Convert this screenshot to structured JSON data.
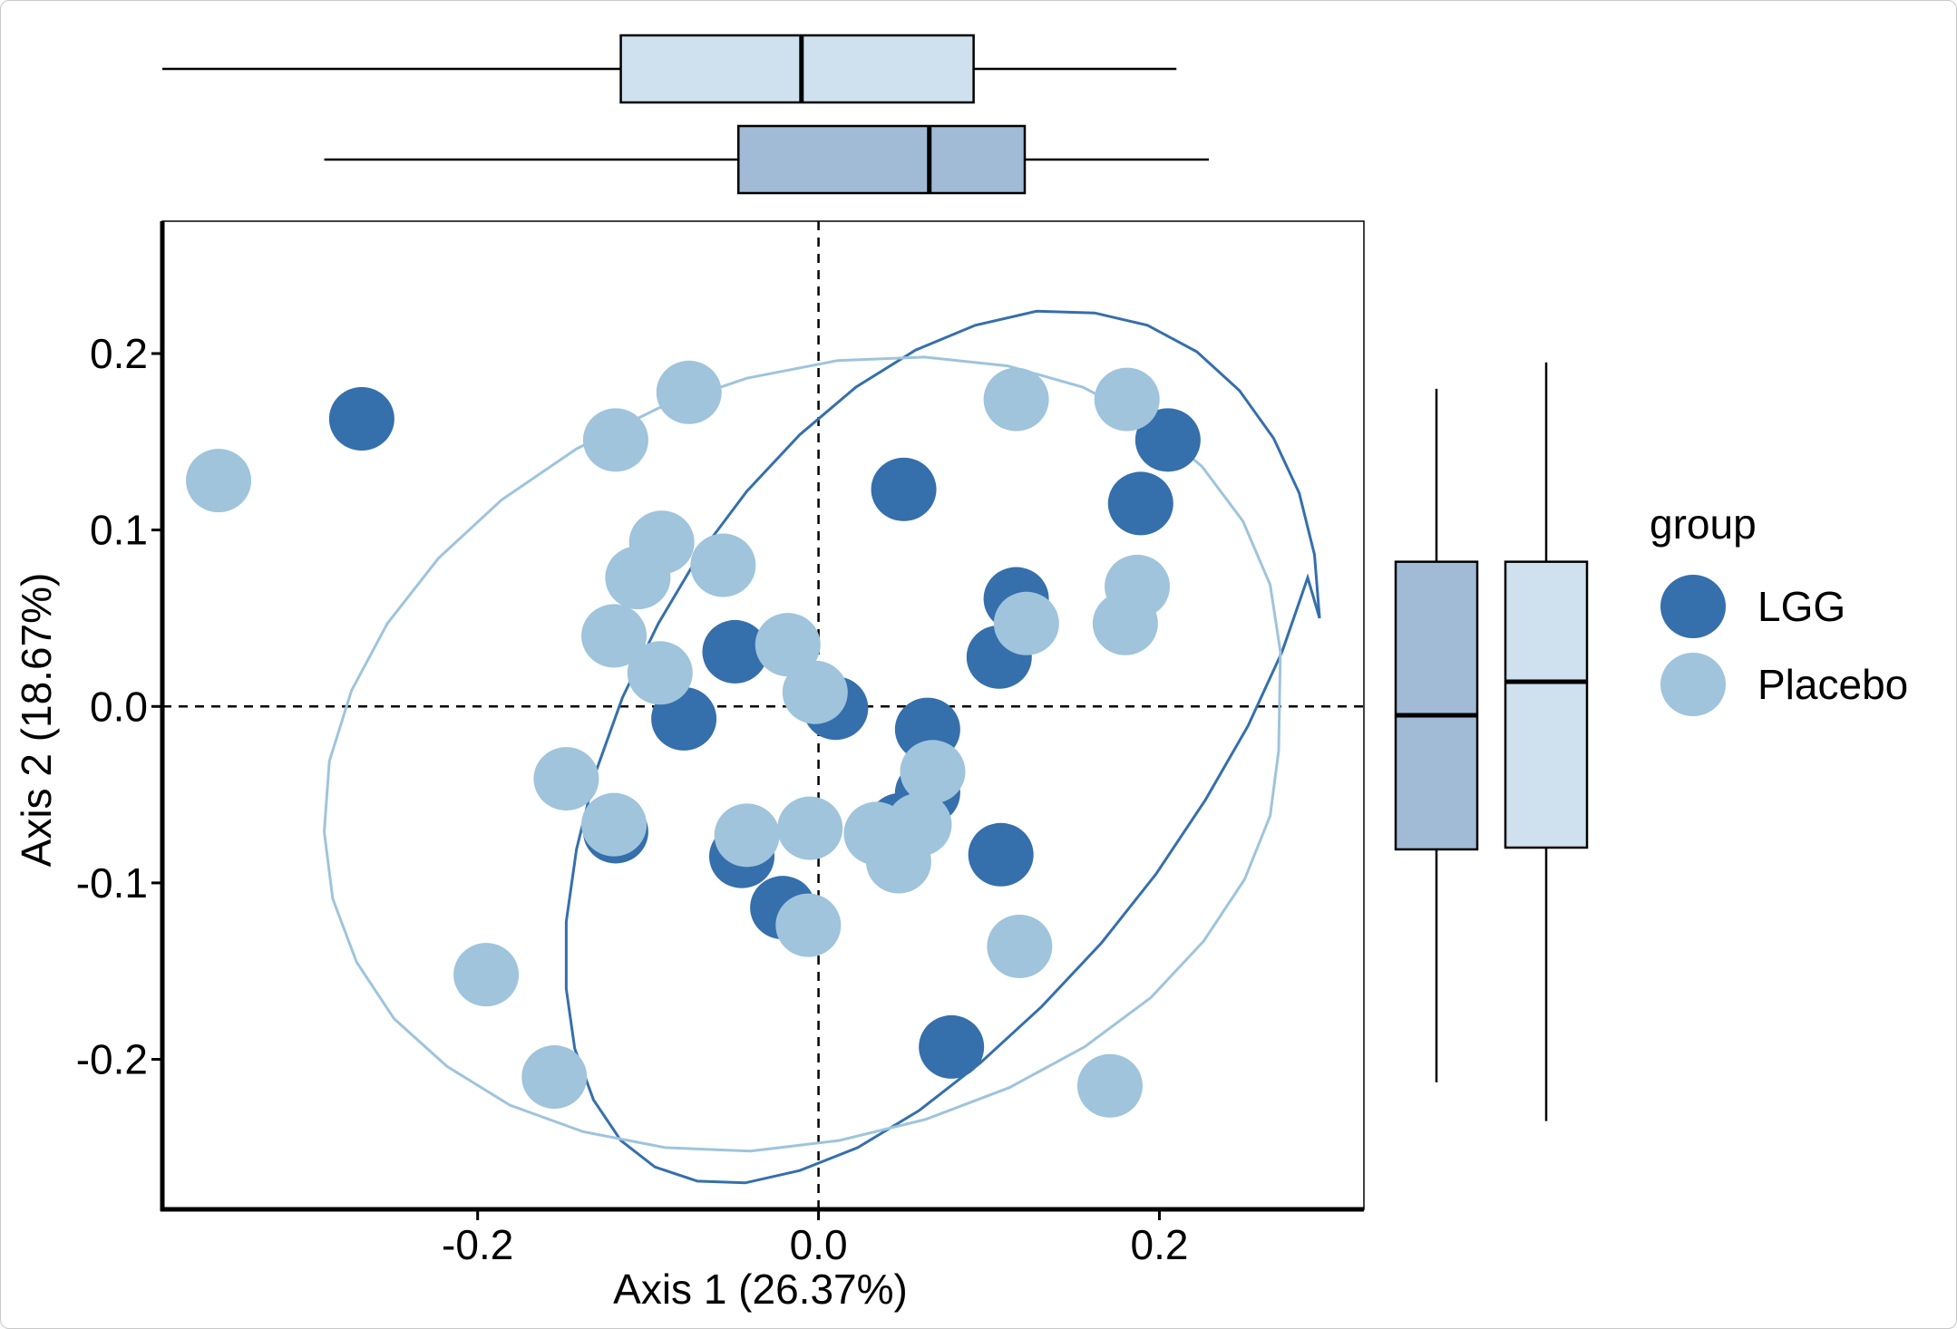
{
  "colors": {
    "LGG": "#356fac",
    "Placebo": "#9fc4dc",
    "box_LGG_fill": "#a1bbd6",
    "box_Placebo_fill": "#cfe1ee",
    "ellipse_LGG": "#356fac",
    "ellipse_Placebo": "#9fc4dc"
  },
  "chart_data": {
    "type": "scatter",
    "title": "",
    "xlabel": "Axis 1 (26.37%)",
    "ylabel": "Axis 2 (18.67%)",
    "xlim": [
      -0.385,
      0.32
    ],
    "ylim": [
      -0.285,
      0.275
    ],
    "x_ticks": [
      -0.2,
      0.0,
      0.2
    ],
    "x_tick_labels": [
      "-0.2",
      "0.0",
      "0.2"
    ],
    "y_ticks": [
      -0.2,
      -0.1,
      0.0,
      0.1,
      0.2
    ],
    "y_tick_labels": [
      "-0.2",
      "-0.1",
      "0.0",
      "0.1",
      "0.2"
    ],
    "reference_lines": {
      "x": 0.0,
      "y": 0.0
    },
    "legend": {
      "title": "group",
      "position": "right",
      "entries": [
        "LGG",
        "Placebo"
      ]
    },
    "series": [
      {
        "name": "LGG",
        "points": [
          [
            -0.268,
            0.163
          ],
          [
            0.05,
            0.123
          ],
          [
            0.205,
            0.151
          ],
          [
            0.189,
            0.115
          ],
          [
            0.116,
            0.061
          ],
          [
            0.106,
            0.028
          ],
          [
            -0.049,
            0.031
          ],
          [
            -0.079,
            -0.007
          ],
          [
            0.01,
            -0.001
          ],
          [
            0.064,
            -0.013
          ],
          [
            0.064,
            -0.049
          ],
          [
            -0.119,
            -0.071
          ],
          [
            -0.045,
            -0.085
          ],
          [
            -0.021,
            -0.114
          ],
          [
            0.107,
            -0.084
          ],
          [
            0.078,
            -0.193
          ],
          [
            0.048,
            -0.067
          ]
        ]
      },
      {
        "name": "Placebo",
        "points": [
          [
            -0.352,
            0.128
          ],
          [
            -0.076,
            0.178
          ],
          [
            -0.119,
            0.151
          ],
          [
            0.116,
            0.174
          ],
          [
            0.181,
            0.174
          ],
          [
            -0.092,
            0.093
          ],
          [
            -0.106,
            0.073
          ],
          [
            -0.056,
            0.08
          ],
          [
            0.187,
            0.068
          ],
          [
            0.18,
            0.047
          ],
          [
            0.122,
            0.047
          ],
          [
            -0.12,
            0.04
          ],
          [
            -0.093,
            0.019
          ],
          [
            -0.018,
            0.035
          ],
          [
            -0.002,
            0.008
          ],
          [
            -0.148,
            -0.041
          ],
          [
            -0.12,
            -0.067
          ],
          [
            -0.042,
            -0.073
          ],
          [
            -0.005,
            -0.069
          ],
          [
            0.034,
            -0.072
          ],
          [
            0.047,
            -0.088
          ],
          [
            0.059,
            -0.067
          ],
          [
            0.067,
            -0.037
          ],
          [
            -0.006,
            -0.124
          ],
          [
            0.118,
            -0.136
          ],
          [
            -0.195,
            -0.152
          ],
          [
            -0.155,
            -0.21
          ],
          [
            0.171,
            -0.215
          ]
        ]
      }
    ],
    "ellipses": [
      {
        "name": "LGG",
        "center": [
          0.04,
          -0.01
        ],
        "semi_x": 0.25,
        "semi_y": 0.245,
        "path": [
          [
            0.294,
            0.05
          ],
          [
            0.291,
            0.086
          ],
          [
            0.282,
            0.121
          ],
          [
            0.267,
            0.152
          ],
          [
            0.247,
            0.179
          ],
          [
            0.222,
            0.201
          ],
          [
            0.193,
            0.216
          ],
          [
            0.162,
            0.223
          ],
          [
            0.128,
            0.224
          ],
          [
            0.092,
            0.216
          ],
          [
            0.057,
            0.202
          ],
          [
            0.022,
            0.181
          ],
          [
            -0.011,
            0.154
          ],
          [
            -0.042,
            0.122
          ],
          [
            -0.07,
            0.086
          ],
          [
            -0.094,
            0.047
          ],
          [
            -0.115,
            0.005
          ],
          [
            -0.131,
            -0.038
          ],
          [
            -0.142,
            -0.081
          ],
          [
            -0.148,
            -0.122
          ],
          [
            -0.148,
            -0.16
          ],
          [
            -0.143,
            -0.194
          ],
          [
            -0.132,
            -0.223
          ],
          [
            -0.116,
            -0.246
          ],
          [
            -0.096,
            -0.261
          ],
          [
            -0.071,
            -0.269
          ],
          [
            -0.043,
            -0.27
          ],
          [
            -0.011,
            -0.263
          ],
          [
            0.023,
            -0.25
          ],
          [
            0.059,
            -0.229
          ],
          [
            0.095,
            -0.202
          ],
          [
            0.131,
            -0.17
          ],
          [
            0.166,
            -0.134
          ],
          [
            0.198,
            -0.095
          ],
          [
            0.227,
            -0.053
          ],
          [
            0.252,
            -0.011
          ],
          [
            0.272,
            0.031
          ],
          [
            0.287,
            0.073
          ],
          [
            0.294,
            0.05
          ]
        ]
      },
      {
        "name": "Placebo",
        "center": [
          -0.01,
          -0.005
        ],
        "semi_x": 0.3,
        "semi_y": 0.255,
        "path": [
          [
            0.27,
            -0.025
          ],
          [
            0.265,
            -0.062
          ],
          [
            0.25,
            -0.098
          ],
          [
            0.226,
            -0.133
          ],
          [
            0.195,
            -0.165
          ],
          [
            0.156,
            -0.193
          ],
          [
            0.112,
            -0.216
          ],
          [
            0.063,
            -0.234
          ],
          [
            0.012,
            -0.246
          ],
          [
            -0.04,
            -0.252
          ],
          [
            -0.09,
            -0.25
          ],
          [
            -0.138,
            -0.241
          ],
          [
            -0.181,
            -0.226
          ],
          [
            -0.218,
            -0.204
          ],
          [
            -0.249,
            -0.177
          ],
          [
            -0.271,
            -0.145
          ],
          [
            -0.285,
            -0.109
          ],
          [
            -0.29,
            -0.071
          ],
          [
            -0.287,
            -0.031
          ],
          [
            -0.274,
            0.009
          ],
          [
            -0.253,
            0.047
          ],
          [
            -0.223,
            0.084
          ],
          [
            -0.186,
            0.117
          ],
          [
            -0.142,
            0.146
          ],
          [
            -0.094,
            0.169
          ],
          [
            -0.042,
            0.186
          ],
          [
            0.011,
            0.196
          ],
          [
            0.062,
            0.198
          ],
          [
            0.111,
            0.193
          ],
          [
            0.155,
            0.181
          ],
          [
            0.193,
            0.162
          ],
          [
            0.225,
            0.136
          ],
          [
            0.249,
            0.105
          ],
          [
            0.265,
            0.069
          ],
          [
            0.271,
            0.031
          ],
          [
            0.27,
            -0.025
          ]
        ]
      }
    ],
    "marginal_boxplots": {
      "x_axis": [
        {
          "group": "Placebo",
          "whisker_low": -0.385,
          "q1": -0.116,
          "median": -0.01,
          "q3": 0.091,
          "whisker_high": 0.21
        },
        {
          "group": "LGG",
          "whisker_low": -0.29,
          "q1": -0.047,
          "median": 0.065,
          "q3": 0.121,
          "whisker_high": 0.229
        }
      ],
      "y_axis": [
        {
          "group": "LGG",
          "whisker_low": -0.213,
          "q1": -0.081,
          "median": -0.005,
          "q3": 0.082,
          "whisker_high": 0.18
        },
        {
          "group": "Placebo",
          "whisker_low": -0.235,
          "q1": -0.08,
          "median": 0.014,
          "q3": 0.082,
          "whisker_high": 0.195
        }
      ]
    }
  }
}
